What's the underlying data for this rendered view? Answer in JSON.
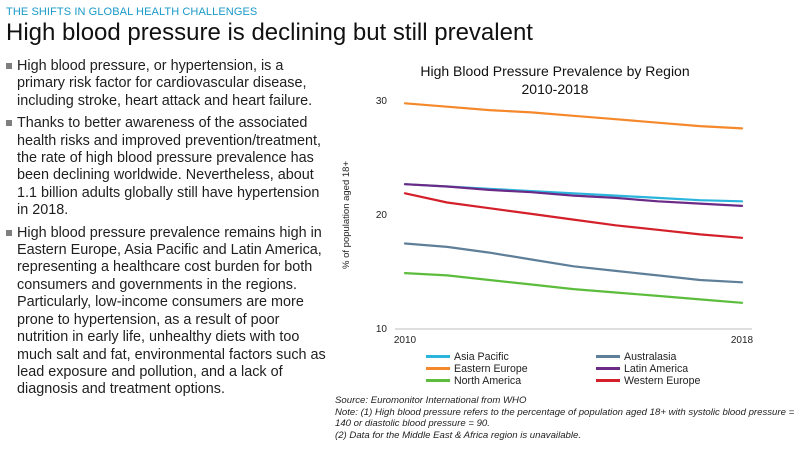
{
  "header": {
    "kicker": "THE SHIFTS IN GLOBAL HEALTH CHALLENGES",
    "title": "High blood pressure is declining but still prevalent"
  },
  "bullets": [
    "High blood pressure, or hypertension, is a primary risk factor for cardiovascular disease, including stroke, heart attack and heart failure.",
    "Thanks to better awareness of the associated health risks and improved prevention/treatment, the rate of high blood pressure prevalence has been declining worldwide. Nevertheless, about 1.1 billion adults globally still have hypertension in 2018.",
    "High blood pressure prevalence remains high in Eastern Europe, Asia Pacific and Latin America, representing a healthcare cost burden for both consumers and governments in the regions. Particularly, low-income consumers are more prone to hypertension, as a result of poor nutrition in early life, unhealthy diets with too much salt and fat, environmental factors such as lead exposure and pollution, and a lack of diagnosis and treatment options."
  ],
  "chart_data": {
    "type": "line",
    "title_line1": "High Blood Pressure Prevalence by Region",
    "title_line2": "2010-2018",
    "ylabel": "% of population aged 18+",
    "xlabel": "",
    "x": [
      2010,
      2011,
      2012,
      2013,
      2014,
      2015,
      2016,
      2017,
      2018
    ],
    "x_tick_labels": [
      "2010",
      "2018"
    ],
    "y_tick_labels": [
      "10",
      "20",
      "30"
    ],
    "ylim": [
      10,
      30
    ],
    "grid": false,
    "legend_position": "bottom",
    "series": [
      {
        "name": "Asia Pacific",
        "color": "#2bb5dd",
        "values": [
          22.7,
          22.5,
          22.3,
          22.1,
          21.9,
          21.7,
          21.5,
          21.3,
          21.2
        ]
      },
      {
        "name": "Australasia",
        "color": "#5f7f99",
        "values": [
          17.5,
          17.2,
          16.7,
          16.1,
          15.5,
          15.1,
          14.7,
          14.3,
          14.1
        ]
      },
      {
        "name": "Eastern Europe",
        "color": "#f5882a",
        "values": [
          29.8,
          29.5,
          29.2,
          29.0,
          28.7,
          28.4,
          28.1,
          27.8,
          27.6
        ]
      },
      {
        "name": "Latin America",
        "color": "#6b2a86",
        "values": [
          22.7,
          22.5,
          22.2,
          22.0,
          21.7,
          21.5,
          21.2,
          21.0,
          20.8
        ]
      },
      {
        "name": "North America",
        "color": "#5cbd3c",
        "values": [
          14.9,
          14.7,
          14.3,
          13.9,
          13.5,
          13.2,
          12.9,
          12.6,
          12.3
        ]
      },
      {
        "name": "Western Europe",
        "color": "#d4202a",
        "values": [
          21.9,
          21.1,
          20.6,
          20.1,
          19.6,
          19.1,
          18.7,
          18.3,
          18.0
        ]
      }
    ]
  },
  "source": {
    "line1": "Source: Euromonitor International from WHO",
    "line2": "Note: (1) High blood pressure refers to the percentage of population aged 18+ with systolic blood pressure = 140 or diastolic blood pressure = 90.",
    "line3": "(2) Data for the Middle East & Africa region is unavailable."
  }
}
